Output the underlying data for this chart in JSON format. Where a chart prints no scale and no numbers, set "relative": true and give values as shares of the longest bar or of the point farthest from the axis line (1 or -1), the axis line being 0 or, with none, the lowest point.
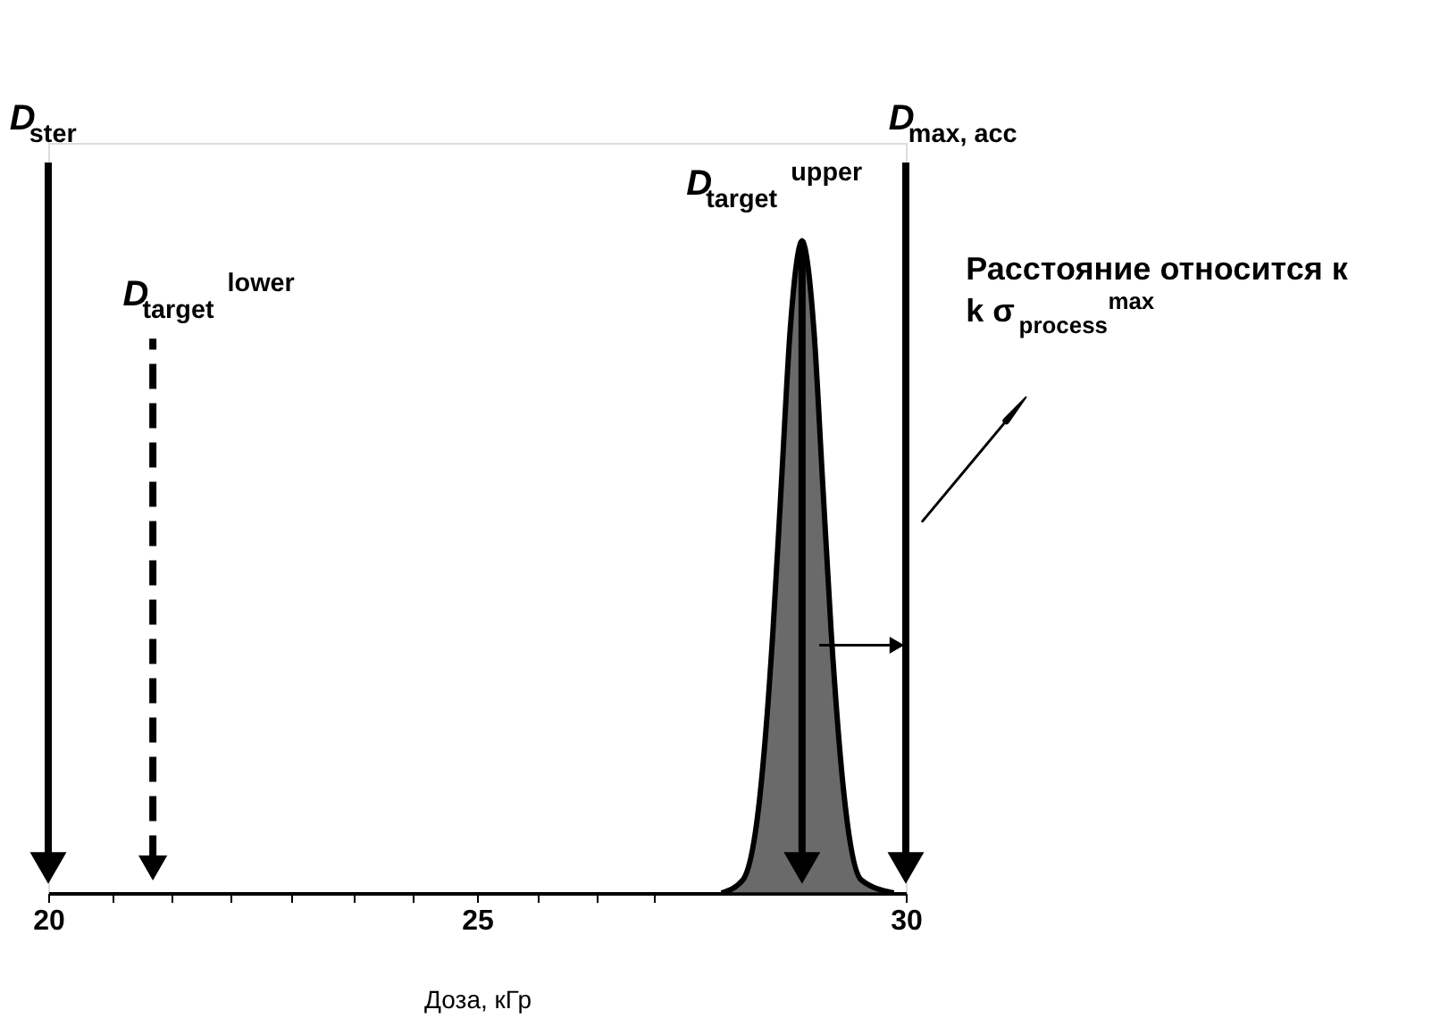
{
  "chart_data": {
    "type": "area",
    "relative": true,
    "xlabel": "Доза, кГр",
    "x": [
      27.85,
      28.1,
      28.3,
      28.45,
      28.55,
      28.65,
      28.72,
      28.79,
      28.86,
      28.93,
      29.03,
      29.13,
      29.28,
      29.48,
      29.86
    ],
    "series": [
      {
        "color": "#2b2b2b",
        "values": [
          0,
          0.02,
          0.15,
          0.4,
          0.63,
          0.86,
          0.96,
          1,
          0.96,
          0.86,
          0.63,
          0.4,
          0.15,
          0.02,
          0
        ]
      }
    ],
    "xlim": [
      20,
      30
    ],
    "xticks": [
      20,
      {
        "value": 20.76,
        "label": null
      },
      {
        "value": 21.44,
        "label": null
      },
      {
        "value": 22.13,
        "label": null
      },
      {
        "value": 22.83,
        "label": null
      },
      {
        "value": 23.57,
        "label": null
      },
      {
        "value": 24.26,
        "label": null
      },
      25,
      {
        "value": 25.7,
        "label": null
      },
      {
        "value": 26.39,
        "label": null
      },
      {
        "value": 27.07,
        "label": null
      },
      30
    ],
    "grid": false,
    "ref_lines": [
      {
        "axis": "x",
        "value": 20,
        "label": "D$_{ster}$",
        "color": "#000000",
        "line_style": "solid"
      },
      {
        "axis": "x",
        "value": 21.22,
        "label": "D$_{target}$$^{lower}$",
        "color": "#000000",
        "line_style": "dashed"
      },
      {
        "axis": "x",
        "value": 28.79,
        "label": "D$_{target}$$^{upper}$",
        "color": "#000000",
        "line_style": "solid"
      },
      {
        "axis": "x",
        "value": 30,
        "label": "D$_{max, acc}$",
        "color": "#000000",
        "line_style": "solid"
      }
    ],
    "annotations": [
      "Расстояние относится к k σ$_{process}$$^{max}$"
    ]
  }
}
